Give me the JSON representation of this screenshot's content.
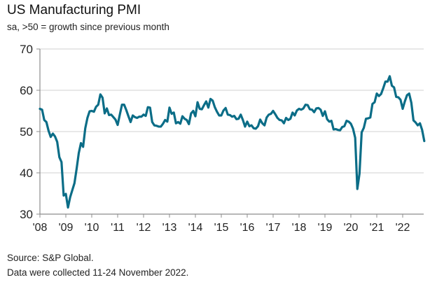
{
  "header": {
    "title": "US Manufacturing PMI",
    "subtitle": "sa, >50 = growth since previous month"
  },
  "footer": {
    "source": "Source: S&P Global.",
    "note": "Data were collected 11-24 November 2022."
  },
  "colors": {
    "line": "#0b6d87",
    "grid": "#d9d9d9",
    "axis": "#8c8c8c"
  },
  "chart_data": {
    "type": "line",
    "title": "US Manufacturing PMI",
    "subtitle": "sa, >50 = growth since previous month",
    "xlabel": "",
    "ylabel": "",
    "ylim": [
      30,
      70
    ],
    "yticks": [
      30,
      40,
      50,
      60,
      70
    ],
    "xticks": [
      "'08",
      "'09",
      "'10",
      "'11",
      "'12",
      "'13",
      "'14",
      "'15",
      "'16",
      "'17",
      "'18",
      "'19",
      "'20",
      "'21",
      "'22"
    ],
    "grid": true,
    "legend": "none",
    "x_start": "2008-01",
    "x_end": "2022-11",
    "frequency": "monthly",
    "series": [
      {
        "name": "US Manufacturing PMI",
        "values": [
          55.5,
          55.3,
          52.8,
          52.3,
          50.2,
          48.7,
          49.5,
          48.8,
          47.5,
          43.8,
          42.6,
          34.5,
          34.9,
          31.6,
          34.1,
          35.8,
          37.5,
          41.0,
          44.8,
          47.2,
          46.3,
          50.8,
          53.3,
          54.9,
          55.0,
          54.8,
          56.0,
          56.5,
          59.0,
          58.2,
          54.4,
          55.6,
          54.0,
          54.1,
          53.5,
          52.9,
          51.6,
          54.1,
          56.5,
          56.5,
          55.2,
          53.7,
          52.3,
          53.9,
          53.5,
          53.3,
          53.6,
          53.6,
          54.1,
          53.8,
          55.9,
          55.8,
          52.3,
          51.5,
          51.4,
          51.2,
          51.2,
          51.9,
          52.8,
          52.4,
          55.8,
          54.3,
          54.6,
          52.0,
          52.3,
          51.9,
          53.7,
          53.1,
          52.8,
          51.8,
          54.4,
          55.0,
          53.7,
          57.1,
          55.5,
          55.4,
          56.4,
          57.3,
          55.8,
          57.9,
          57.5,
          55.9,
          54.8,
          53.9,
          53.9,
          55.1,
          55.7,
          54.1,
          54.0,
          53.6,
          53.8,
          53.0,
          53.1,
          54.1,
          52.8,
          51.2,
          52.4,
          51.3,
          51.5,
          50.8,
          50.7,
          51.3,
          52.9,
          52.0,
          51.5,
          53.4,
          54.1,
          54.3,
          55.0,
          54.2,
          53.3,
          52.8,
          52.7,
          52.0,
          53.3,
          52.8,
          53.1,
          54.6,
          53.9,
          55.1,
          55.5,
          55.3,
          55.6,
          56.5,
          56.4,
          55.4,
          55.3,
          54.7,
          55.6,
          55.7,
          55.3,
          53.8,
          54.9,
          53.0,
          52.4,
          52.6,
          50.5,
          50.6,
          50.4,
          50.3,
          51.1,
          51.3,
          52.6,
          52.4,
          51.9,
          50.7,
          48.5,
          36.1,
          39.8,
          49.8,
          50.9,
          53.1,
          53.2,
          53.4,
          56.7,
          57.1,
          59.2,
          58.6,
          59.1,
          60.5,
          62.1,
          62.1,
          63.4,
          61.1,
          60.7,
          58.4,
          58.3,
          57.7,
          55.5,
          57.3,
          58.8,
          59.2,
          57.0,
          52.7,
          52.2,
          51.5,
          52.0,
          50.4,
          47.7
        ]
      }
    ]
  }
}
